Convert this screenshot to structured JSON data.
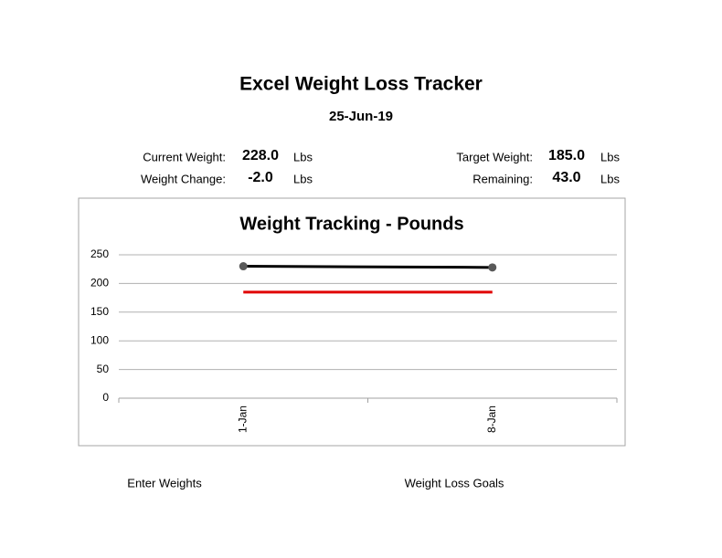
{
  "header": {
    "title": "Excel Weight Loss Tracker",
    "date": "25-Jun-19"
  },
  "stats": [
    {
      "label": "Current Weight:",
      "value": "228.0",
      "unit": "Lbs"
    },
    {
      "label": "Weight Change:",
      "value": "-2.0",
      "unit": "Lbs"
    },
    {
      "label": "Target Weight:",
      "value": "185.0",
      "unit": "Lbs"
    },
    {
      "label": "Remaining:",
      "value": "43.0",
      "unit": "Lbs"
    }
  ],
  "chart_data": {
    "type": "line",
    "title": "Weight Tracking - Pounds",
    "categories": [
      "1-Jan",
      "8-Jan"
    ],
    "series": [
      {
        "color": "#000000",
        "values": [
          230,
          228
        ],
        "markers": true,
        "marker_color": "#595959"
      },
      {
        "color": "#e00000",
        "values": [
          185,
          185
        ],
        "markers": false
      }
    ],
    "ylim": [
      0,
      250
    ],
    "yticks": [
      0,
      50,
      100,
      150,
      200,
      250
    ],
    "grid": true
  },
  "links": [
    "Enter Weights",
    "Weight Loss Goals"
  ]
}
